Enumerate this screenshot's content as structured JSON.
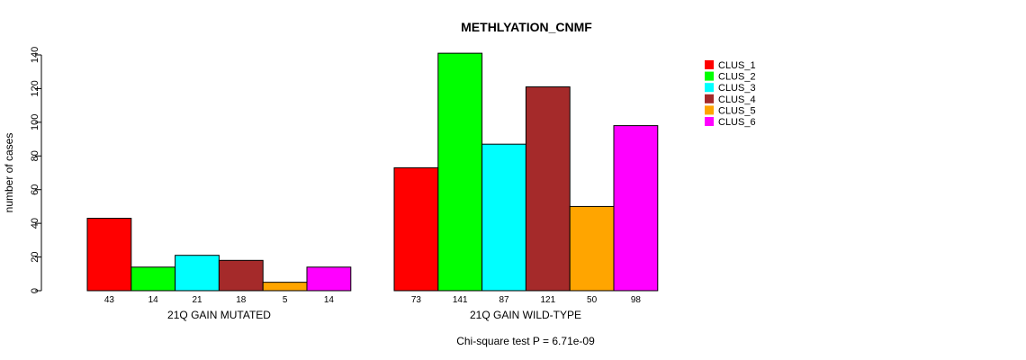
{
  "chart_data": {
    "type": "bar",
    "title": "METHLYATION_CNMF",
    "ylabel": "number of cases",
    "ylim": [
      0,
      140
    ],
    "yticks": [
      0,
      20,
      40,
      60,
      80,
      100,
      120,
      140
    ],
    "groups": [
      {
        "label": "21Q GAIN MUTATED",
        "values": [
          43,
          14,
          21,
          18,
          5,
          14
        ]
      },
      {
        "label": "21Q GAIN WILD-TYPE",
        "values": [
          73,
          141,
          87,
          121,
          50,
          98
        ]
      }
    ],
    "series": [
      {
        "name": "CLUS_1",
        "color": "#ff0000"
      },
      {
        "name": "CLUS_2",
        "color": "#00ff00"
      },
      {
        "name": "CLUS_3",
        "color": "#00ffff"
      },
      {
        "name": "CLUS_4",
        "color": "#a52a2a"
      },
      {
        "name": "CLUS_5",
        "color": "#ffa500"
      },
      {
        "name": "CLUS_6",
        "color": "#ff00ff"
      }
    ],
    "legend_position": "top-right",
    "grid": false,
    "footnote": "Chi-square test P = 6.71e-09"
  }
}
